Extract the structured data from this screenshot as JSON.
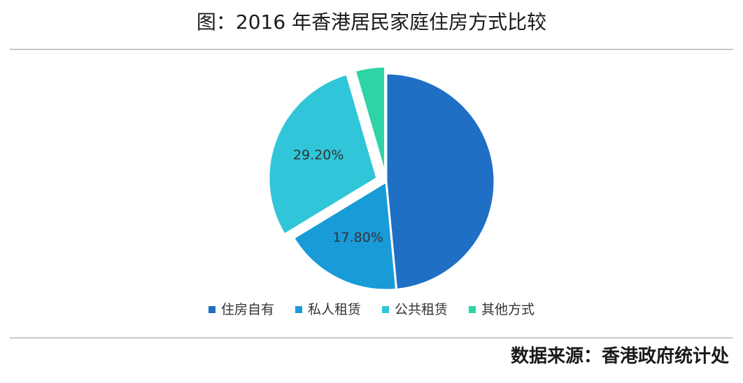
{
  "title": "图：2016 年香港居民家庭住房方式比较",
  "source": "数据来源：香港政府统计处",
  "chart_data": {
    "type": "pie",
    "series": [
      {
        "label": "住房自有",
        "value": 48.5,
        "display": "",
        "color": "#1f6fc5"
      },
      {
        "label": "私人租赁",
        "value": 17.8,
        "display": "17.80%",
        "color": "#199bd8"
      },
      {
        "label": "公共租赁",
        "value": 29.2,
        "display": "29.20%",
        "color": "#30c5d8"
      },
      {
        "label": "其他方式",
        "value": 4.5,
        "display": "",
        "color": "#2ed3a6"
      }
    ],
    "legend_position": "bottom"
  }
}
